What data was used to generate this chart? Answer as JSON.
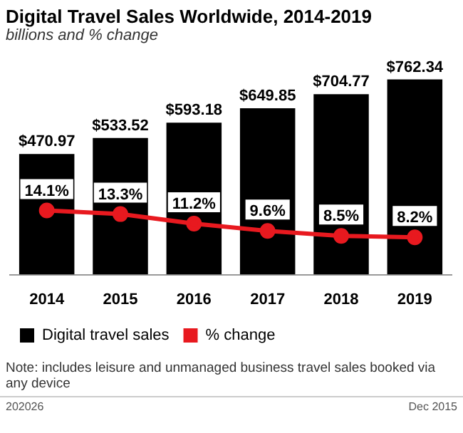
{
  "chart_data": {
    "type": "bar",
    "title": "Digital Travel Sales Worldwide, 2014-2019",
    "subtitle": "billions and % change",
    "categories": [
      "2014",
      "2015",
      "2016",
      "2017",
      "2018",
      "2019"
    ],
    "series": [
      {
        "name": "Digital travel sales",
        "color": "#000000",
        "values": [
          470.97,
          533.52,
          593.18,
          649.85,
          704.77,
          762.34
        ],
        "value_labels": [
          "$470.97",
          "$533.52",
          "$593.18",
          "$649.85",
          "$704.77",
          "$762.34"
        ]
      },
      {
        "name": "% change",
        "type": "line",
        "axis": "y2",
        "color": "#e8191f",
        "values": [
          14.1,
          13.3,
          11.2,
          9.6,
          8.5,
          8.2
        ],
        "value_labels": [
          "14.1%",
          "13.3%",
          "11.2%",
          "9.6%",
          "8.5%",
          "8.2%"
        ]
      }
    ],
    "tick_labels": "x",
    "grid": false,
    "legend": "bottom",
    "marker": "circle",
    "annotations": [
      "Note: includes leisure and unmanaged business travel sales booked via any device",
      "202026",
      "Dec 2015"
    ]
  }
}
